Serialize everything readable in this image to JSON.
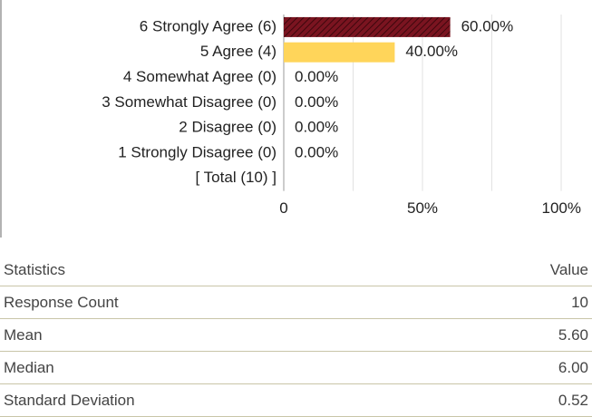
{
  "chart_data": {
    "type": "barh",
    "categories": [
      "6 Strongly Agree (6)",
      "5 Agree (4)",
      "4 Somewhat Agree (0)",
      "3 Somewhat Disagree (0)",
      "2 Disagree (0)",
      "1 Strongly Disagree (0)",
      "[ Total (10) ]"
    ],
    "values": [
      60,
      40,
      0,
      0,
      0,
      0,
      null
    ],
    "value_labels": [
      "60.00%",
      "40.00%",
      "0.00%",
      "0.00%",
      "0.00%",
      "0.00%",
      null
    ],
    "colors": [
      "#7a1420",
      "#ffd55a",
      "#ffd55a",
      "#ffd55a",
      "#ffd55a",
      "#ffd55a",
      null
    ],
    "patterns": [
      "hatch",
      "solid",
      "solid",
      "solid",
      "solid",
      "solid",
      null
    ],
    "xlim": [
      0,
      100
    ],
    "xticks": [
      0,
      {
        "value": 50,
        "label": "50%"
      },
      {
        "value": 100,
        "label": "100%"
      }
    ],
    "minor_grid": [
      25,
      75
    ],
    "grid": true
  },
  "table": {
    "header": [
      "Statistics",
      "Value"
    ],
    "rows": [
      [
        "Response Count",
        "10"
      ],
      [
        "Mean",
        "5.60"
      ],
      [
        "Median",
        "6.00"
      ],
      [
        "Standard Deviation",
        "0.52"
      ]
    ]
  }
}
